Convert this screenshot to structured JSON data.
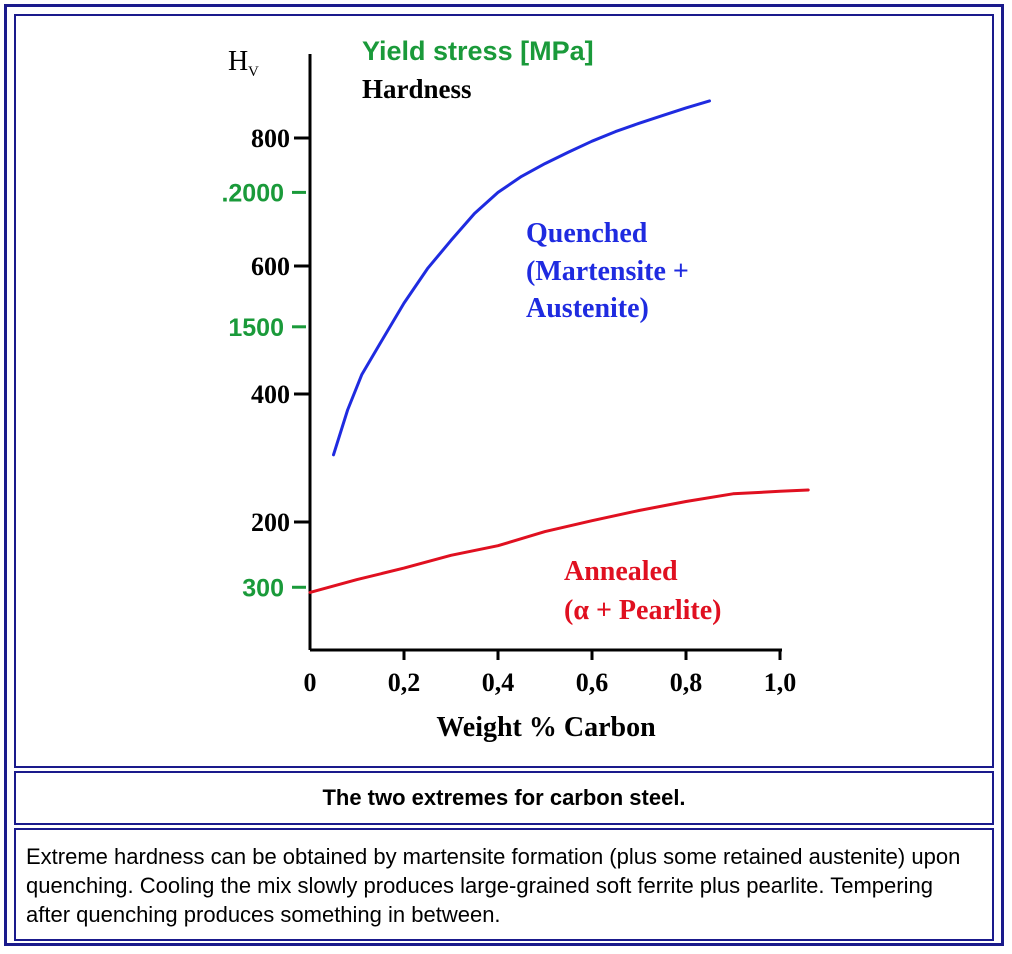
{
  "caption": "The two extremes for carbon steel.",
  "description": "Extreme hardness can be obtained by martensite formation (plus some retained austenite) upon quenching. Cooling the mix slowly produces large-grained soft ferrite plus pearlite. Tempering after quenching produces something in between.",
  "colors": {
    "border": "#1a1a8c",
    "quenched": "#1f2be0",
    "annealed": "#e01020",
    "yield": "#1a9a3a",
    "text": "#000000"
  },
  "chart_data": {
    "type": "line",
    "y_axis_label": "Hv",
    "y_axis_label_main": "H",
    "y_axis_label_sub": "V",
    "legend_yield": "Yield stress [MPa]",
    "legend_hardness": "Hardness",
    "xlabel": "Weight % Carbon",
    "x_ticks": [
      "0",
      "0,2",
      "0,4",
      "0,6",
      "0,8",
      "1,0"
    ],
    "x_tick_values": [
      0,
      0.2,
      0.4,
      0.6,
      0.8,
      1.0
    ],
    "hardness_ticks": [
      "800",
      "600",
      "400",
      "200"
    ],
    "hardness_tick_values": [
      800,
      600,
      400,
      200
    ],
    "yield_ticks": [
      ".2000",
      "1500",
      "300"
    ],
    "yield_tick_hardness_equiv": [
      715,
      505,
      98
    ],
    "xlim": [
      0,
      1.05
    ],
    "ylim": [
      0,
      930
    ],
    "series": [
      {
        "name": "Quenched (Martensite + Austenite)",
        "label_lines": [
          "Quenched",
          "(Martensite +",
          "Austenite)"
        ],
        "color": "#1f2be0",
        "x": [
          0.05,
          0.08,
          0.11,
          0.15,
          0.2,
          0.25,
          0.3,
          0.35,
          0.4,
          0.45,
          0.5,
          0.55,
          0.6,
          0.65,
          0.7,
          0.75,
          0.8,
          0.85
        ],
        "y": [
          305,
          375,
          430,
          480,
          542,
          596,
          640,
          682,
          715,
          740,
          760,
          778,
          795,
          810,
          823,
          835,
          847,
          858
        ]
      },
      {
        "name": "Annealed (α + Pearlite)",
        "label_lines": [
          "Annealed",
          "(α + Pearlite)"
        ],
        "color": "#e01020",
        "x": [
          0,
          0.1,
          0.2,
          0.3,
          0.4,
          0.5,
          0.6,
          0.7,
          0.8,
          0.9,
          1.0,
          1.06
        ],
        "y": [
          90,
          110,
          128,
          148,
          163,
          185,
          202,
          218,
          232,
          244,
          248,
          250
        ]
      }
    ]
  }
}
